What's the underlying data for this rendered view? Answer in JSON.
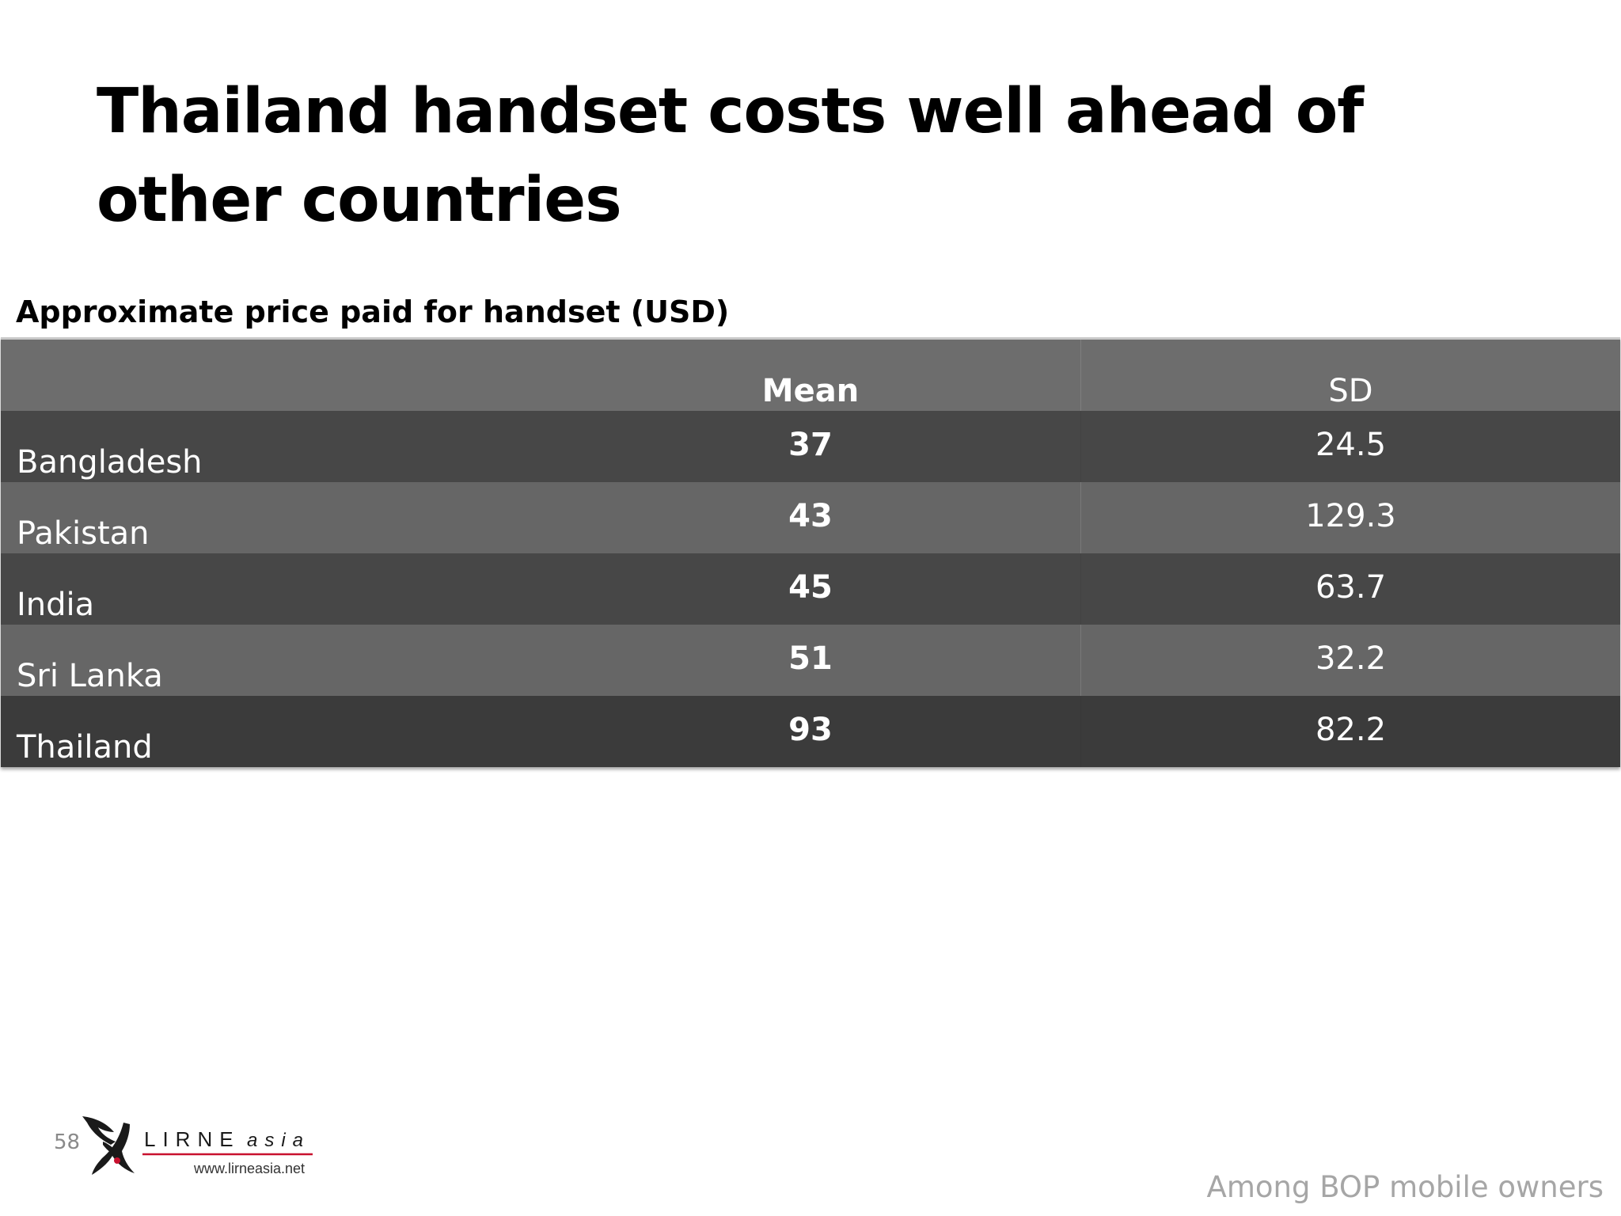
{
  "slide": {
    "title": "Thailand handset costs well ahead of other countries",
    "page_number": "58",
    "footnote": "Among BOP mobile owners"
  },
  "table": {
    "caption": "Approximate price paid for handset (USD)",
    "headers": [
      "",
      "Mean",
      "SD"
    ],
    "rows": [
      {
        "country": "Bangladesh",
        "mean": "37",
        "sd": "24.5"
      },
      {
        "country": "Pakistan",
        "mean": "43",
        "sd": "129.3"
      },
      {
        "country": "India",
        "mean": "45",
        "sd": "63.7"
      },
      {
        "country": "Sri Lanka",
        "mean": "51",
        "sd": "32.2"
      },
      {
        "country": "Thailand",
        "mean": "93",
        "sd": "82.2"
      }
    ]
  },
  "logo": {
    "name": "LIRNEasia",
    "text_main": "LIRNE",
    "text_suffix": "asia",
    "url": "www.lirneasia.net",
    "accent_color": "#c8102e"
  },
  "colors": {
    "header_bg": "#6d6d6d",
    "row_dark": "#474747",
    "row_light": "#666666",
    "row_last": "#3b3b3b"
  }
}
